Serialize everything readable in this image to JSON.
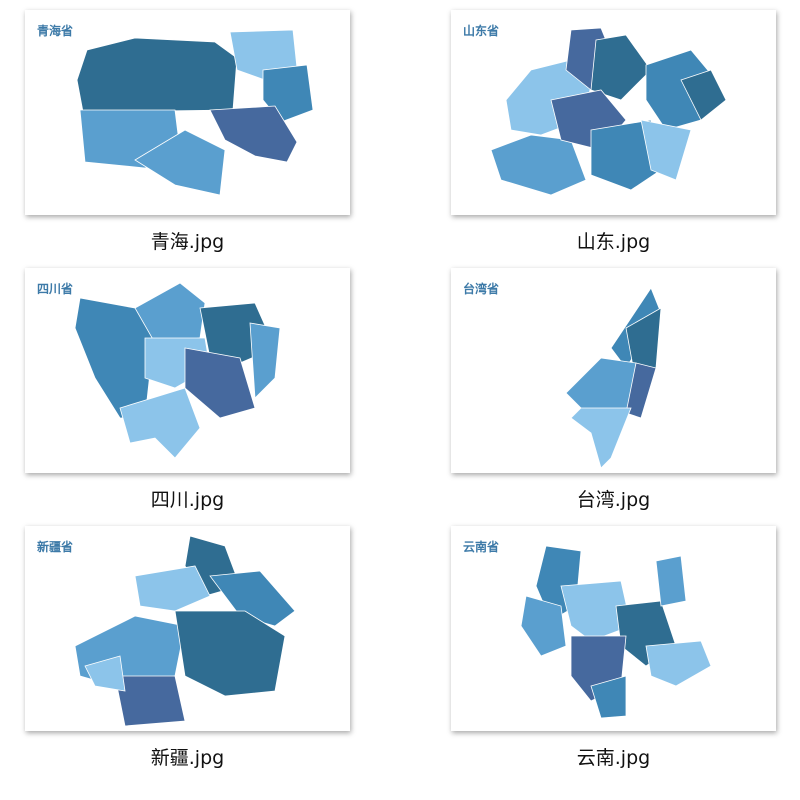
{
  "items": [
    {
      "title": "青海省",
      "filename": "青海.jpg"
    },
    {
      "title": "山东省",
      "filename": "山东.jpg"
    },
    {
      "title": "四川省",
      "filename": "四川.jpg"
    },
    {
      "title": "台湾省",
      "filename": "台湾.jpg"
    },
    {
      "title": "新疆省",
      "filename": "新疆.jpg"
    },
    {
      "title": "云南省",
      "filename": "云南.jpg"
    }
  ]
}
